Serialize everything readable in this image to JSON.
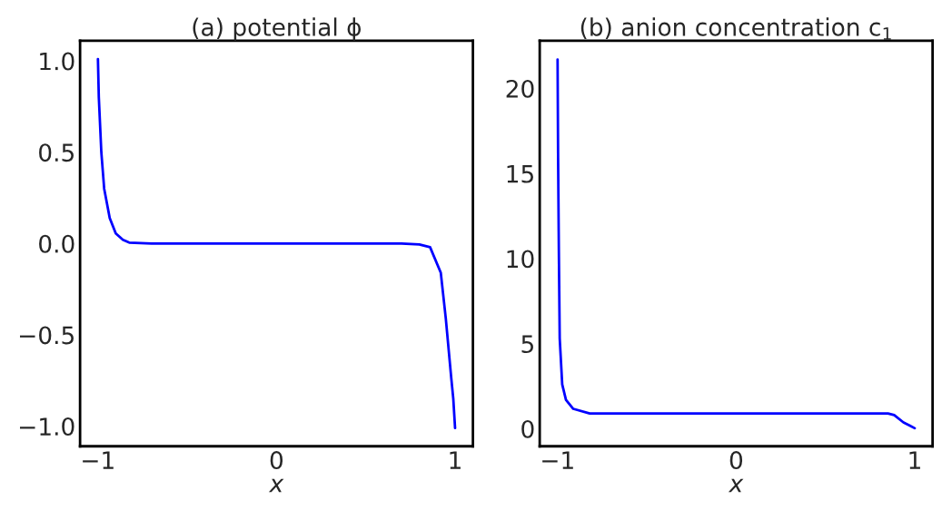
{
  "chart_data": [
    {
      "type": "line",
      "title": "(a) potential ϕ",
      "xlabel": "x",
      "xlim": [
        -1.1,
        1.1
      ],
      "ylim": [
        -1.11,
        1.11
      ],
      "xticks": [
        {
          "value": -1,
          "label": "−1"
        },
        0,
        1
      ],
      "yticks": [
        {
          "value": -1.0,
          "label": "−1.0"
        },
        {
          "value": -0.5,
          "label": "−0.5"
        },
        {
          "value": 0.0,
          "label": "0.0"
        },
        {
          "value": 0.5,
          "label": "0.5"
        },
        {
          "value": 1.0,
          "label": "1.0"
        }
      ],
      "grid": false,
      "marker": "none",
      "line_style": "solid",
      "series": [
        {
          "color": "#0000ff",
          "x": [
            -1.0,
            -0.995,
            -0.981,
            -0.965,
            -0.934,
            -0.9,
            -0.86,
            -0.825,
            -0.7,
            -0.4,
            0.0,
            0.4,
            0.7,
            0.8,
            0.86,
            0.92,
            0.948,
            0.979,
            0.99,
            1.0
          ],
          "values": [
            1.01,
            0.8,
            0.5,
            0.3,
            0.14,
            0.055,
            0.02,
            0.005,
            0.0,
            0.0,
            0.0,
            0.0,
            0.0,
            -0.005,
            -0.02,
            -0.16,
            -0.41,
            -0.74,
            -0.85,
            -1.01
          ]
        }
      ]
    },
    {
      "type": "line",
      "title": "(b) anion concentration c$_{1}$",
      "xlabel": "x",
      "xlim": [
        -1.1,
        1.1
      ],
      "ylim": [
        -1.03,
        22.8
      ],
      "xticks": [
        {
          "value": -1,
          "label": "−1"
        },
        0,
        1
      ],
      "yticks": [
        0,
        5,
        10,
        15,
        20
      ],
      "grid": false,
      "marker": "none",
      "line_style": "solid",
      "series": [
        {
          "color": "#0000ff",
          "x": [
            -1.0,
            -0.997,
            -0.993,
            -0.988,
            -0.974,
            -0.953,
            -0.912,
            -0.82,
            -0.6,
            0.0,
            0.6,
            0.85,
            0.885,
            0.937,
            0.97,
            1.0
          ],
          "values": [
            21.7,
            15.9,
            10.6,
            5.3,
            2.6,
            1.7,
            1.17,
            0.9,
            0.9,
            0.9,
            0.9,
            0.9,
            0.8,
            0.37,
            0.2,
            0.03
          ]
        }
      ]
    }
  ]
}
